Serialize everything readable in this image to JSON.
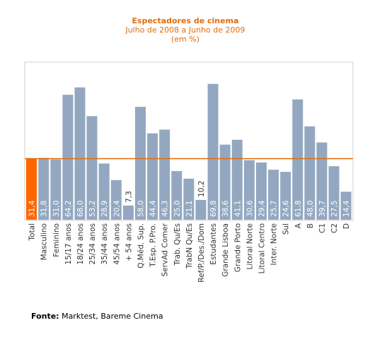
{
  "chart_data": {
    "type": "bar",
    "title": "Espectadores de cinema",
    "subtitle": "Julho de 2008 a Junho de 2009",
    "unit_label": "(em %)",
    "categories": [
      "Total",
      "Masculino",
      "Feminino",
      "15/17 anos",
      "18/24 anos",
      "25/34 anos",
      "35/44 anos",
      "45/54 anos",
      "+ 54 anos",
      "Q.Méd. Sup.",
      "T.Esp. P.Pro.",
      "ServAd Comer",
      "Trab. Qu/Es",
      "TrabN Qu/Es",
      "Ref/P./Des./Dom",
      "Estudantes",
      "Grande Lisboa",
      "Grande Porto",
      "Litoral Norte",
      "Litoral Centro",
      "Inter. Norte",
      "Sul",
      "A",
      "B",
      "C1",
      "C2",
      "D"
    ],
    "values": [
      31.4,
      31.8,
      31.0,
      64.2,
      68.0,
      53.2,
      28.9,
      20.4,
      7.3,
      58.0,
      44.4,
      46.3,
      25.0,
      21.1,
      10.2,
      69.8,
      38.6,
      41.1,
      30.6,
      29.4,
      25.7,
      24.6,
      61.8,
      48.0,
      39.7,
      27.5,
      14.4
    ],
    "value_labels": [
      "31,4",
      "31,8",
      "31,0",
      "64,2",
      "68,0",
      "53,2",
      "28,9",
      "20,4",
      "7,3",
      "58,0",
      "44,4",
      "46,3",
      "25,0",
      "21,1",
      "10,2",
      "69,8",
      "38,6",
      "41,1",
      "30,6",
      "29,4",
      "25,7",
      "24,6",
      "61,8",
      "48,0",
      "39,7",
      "27,5",
      "14,4"
    ],
    "highlight_index": 0,
    "reference_line": 31.4,
    "ylim": [
      0,
      80
    ],
    "grid": false,
    "legend": "none",
    "colors": {
      "bar": "#93a8c0",
      "highlight": "#ff6600",
      "reference_line": "#e36c09",
      "plot_background": "#ffffff",
      "page_background": "#ffffff",
      "frame": "#d0d0d0",
      "title": "#e36c09",
      "bar_label": "#ffffff"
    }
  },
  "source": {
    "label": "Fonte:",
    "text": " Marktest, Bareme Cinema"
  }
}
